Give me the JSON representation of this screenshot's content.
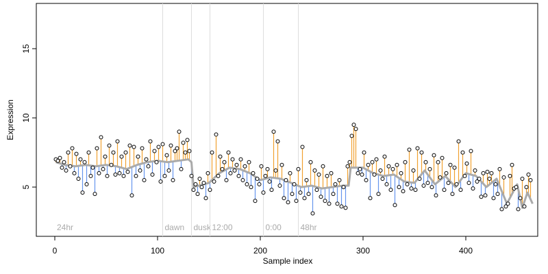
{
  "chart_data": {
    "type": "scatter",
    "xlabel": "Sample index",
    "ylabel": "Expression",
    "xlim": [
      -18,
      470
    ],
    "ylim": [
      1.44,
      18.27
    ],
    "xticks": [
      0,
      100,
      200,
      300,
      400
    ],
    "yticks": [
      5,
      10,
      15
    ],
    "point_color": "#000000",
    "above_color": "#f0a030",
    "below_color": "#6495ed",
    "fit_color": "#aaaaaa",
    "annotations": [
      {
        "x": 0,
        "label": "24hr"
      },
      {
        "x": 105,
        "label": "dawn"
      },
      {
        "x": 133,
        "label": "dusk"
      },
      {
        "x": 151,
        "label": "12:00"
      },
      {
        "x": 203,
        "label": "0:00"
      },
      {
        "x": 237,
        "label": "48hr"
      }
    ],
    "x": [
      1,
      3,
      5,
      7,
      9,
      11,
      13,
      15,
      17,
      19,
      21,
      23,
      25,
      27,
      29,
      31,
      33,
      35,
      37,
      39,
      41,
      43,
      45,
      47,
      49,
      51,
      53,
      55,
      57,
      59,
      61,
      63,
      65,
      67,
      69,
      71,
      73,
      75,
      77,
      79,
      81,
      83,
      85,
      87,
      89,
      91,
      93,
      95,
      97,
      99,
      101,
      103,
      105,
      107,
      109,
      111,
      113,
      115,
      117,
      119,
      121,
      123,
      125,
      127,
      129,
      131,
      133,
      135,
      137,
      139,
      141,
      143,
      145,
      147,
      149,
      151,
      153,
      155,
      157,
      159,
      161,
      163,
      165,
      167,
      169,
      171,
      173,
      175,
      177,
      179,
      181,
      183,
      185,
      187,
      189,
      191,
      193,
      195,
      197,
      199,
      201,
      203,
      205,
      207,
      209,
      211,
      213,
      215,
      217,
      219,
      221,
      223,
      225,
      227,
      229,
      231,
      233,
      235,
      237,
      239,
      241,
      243,
      245,
      247,
      249,
      251,
      253,
      255,
      257,
      259,
      261,
      263,
      265,
      267,
      269,
      271,
      273,
      275,
      277,
      279,
      281,
      283,
      285,
      287,
      289,
      291,
      293,
      295,
      297,
      299,
      301,
      303,
      305,
      307,
      309,
      311,
      313,
      315,
      317,
      319,
      321,
      323,
      325,
      327,
      329,
      331,
      333,
      335,
      337,
      339,
      341,
      343,
      345,
      347,
      349,
      351,
      353,
      355,
      357,
      359,
      361,
      363,
      365,
      367,
      369,
      371,
      373,
      375,
      377,
      379,
      381,
      383,
      385,
      387,
      389,
      391,
      393,
      395,
      397,
      399,
      401,
      403,
      405,
      407,
      409,
      411,
      413,
      415,
      417,
      419,
      421,
      423,
      425,
      427,
      429,
      431,
      433,
      435,
      437,
      439,
      441,
      443,
      445,
      447,
      449,
      451,
      453,
      455,
      457,
      459,
      461,
      463
    ],
    "values": [
      7.0,
      6.9,
      7.1,
      6.4,
      6.8,
      6.2,
      7.5,
      6.5,
      7.8,
      6.0,
      7.4,
      5.6,
      7.0,
      4.6,
      6.8,
      5.2,
      7.5,
      5.8,
      6.4,
      4.5,
      7.8,
      6.0,
      8.6,
      6.3,
      7.2,
      5.8,
      8.0,
      6.6,
      7.5,
      5.9,
      8.3,
      6.0,
      7.2,
      5.8,
      7.5,
      6.1,
      8.0,
      4.4,
      7.9,
      5.8,
      7.2,
      6.2,
      7.8,
      5.5,
      7.0,
      6.5,
      8.3,
      5.9,
      7.6,
      6.8,
      7.9,
      5.4,
      8.1,
      5.8,
      7.3,
      6.2,
      8.0,
      5.5,
      7.6,
      7.8,
      9.0,
      6.3,
      8.2,
      7.5,
      8.4,
      7.6,
      5.8,
      4.8,
      5.2,
      4.5,
      5.6,
      5.0,
      5.3,
      4.2,
      6.0,
      4.8,
      7.5,
      5.4,
      8.8,
      5.8,
      7.2,
      6.3,
      6.8,
      5.5,
      7.5,
      6.0,
      7.0,
      6.2,
      6.6,
      5.8,
      7.0,
      5.5,
      6.5,
      5.2,
      6.8,
      5.0,
      6.0,
      4.0,
      5.6,
      5.2,
      6.5,
      4.6,
      5.8,
      6.3,
      5.4,
      4.8,
      9.0,
      6.2,
      8.3,
      5.1,
      6.6,
      4.2,
      5.5,
      3.9,
      6.0,
      4.5,
      5.2,
      4.0,
      6.3,
      4.6,
      7.9,
      4.2,
      5.5,
      4.5,
      6.8,
      3.1,
      6.2,
      4.8,
      5.9,
      4.3,
      6.5,
      4.0,
      5.8,
      3.8,
      6.0,
      4.5,
      5.2,
      3.8,
      5.5,
      3.6,
      5.0,
      3.5,
      6.5,
      6.8,
      8.7,
      9.5,
      9.2,
      6.0,
      6.3,
      5.9,
      7.5,
      5.5,
      6.6,
      4.2,
      6.8,
      5.9,
      7.0,
      4.5,
      6.2,
      5.6,
      7.2,
      5.2,
      6.5,
      4.8,
      6.3,
      3.7,
      6.6,
      5.0,
      6.0,
      4.7,
      6.8,
      5.2,
      7.7,
      4.9,
      6.2,
      4.8,
      7.8,
      5.6,
      7.5,
      5.1,
      6.8,
      5.3,
      6.3,
      5.0,
      7.3,
      4.4,
      6.8,
      5.7,
      7.1,
      4.8,
      6.0,
      5.3,
      6.6,
      4.5,
      6.4,
      5.2,
      8.3,
      4.8,
      7.5,
      5.8,
      6.7,
      5.3,
      7.6,
      4.9,
      6.2,
      5.4,
      5.6,
      4.3,
      6.0,
      4.4,
      6.1,
      5.6,
      6.0,
      4.2,
      5.2,
      4.5,
      6.3,
      3.4,
      5.7,
      3.6,
      3.8,
      5.8,
      6.6,
      4.9,
      5.0,
      3.4,
      4.2,
      5.6,
      3.6,
      5.0,
      5.9,
      5.5
    ],
    "fit": {
      "x": [
        1,
        10,
        20,
        30,
        40,
        50,
        60,
        70,
        80,
        90,
        100,
        110,
        120,
        130,
        133,
        135,
        140,
        150,
        160,
        170,
        180,
        190,
        200,
        210,
        220,
        230,
        240,
        250,
        260,
        270,
        280,
        286,
        288,
        300,
        310,
        320,
        330,
        340,
        350,
        360,
        370,
        380,
        390,
        400,
        410,
        420,
        430,
        440,
        450,
        455,
        460,
        465
      ],
      "values": [
        6.8,
        6.6,
        6.5,
        6.6,
        6.5,
        6.6,
        6.5,
        6.3,
        6.6,
        6.8,
        6.9,
        6.8,
        6.9,
        7.0,
        6.8,
        5.0,
        5.1,
        5.3,
        6.0,
        6.4,
        6.3,
        6.0,
        5.5,
        5.7,
        5.6,
        5.3,
        5.0,
        5.1,
        4.9,
        5.0,
        5.1,
        5.1,
        6.4,
        6.4,
        6.0,
        5.8,
        5.9,
        5.4,
        5.3,
        6.2,
        5.2,
        5.8,
        5.0,
        6.0,
        5.8,
        5.0,
        5.6,
        3.8,
        5.2,
        3.5,
        4.6,
        3.8
      ]
    }
  }
}
